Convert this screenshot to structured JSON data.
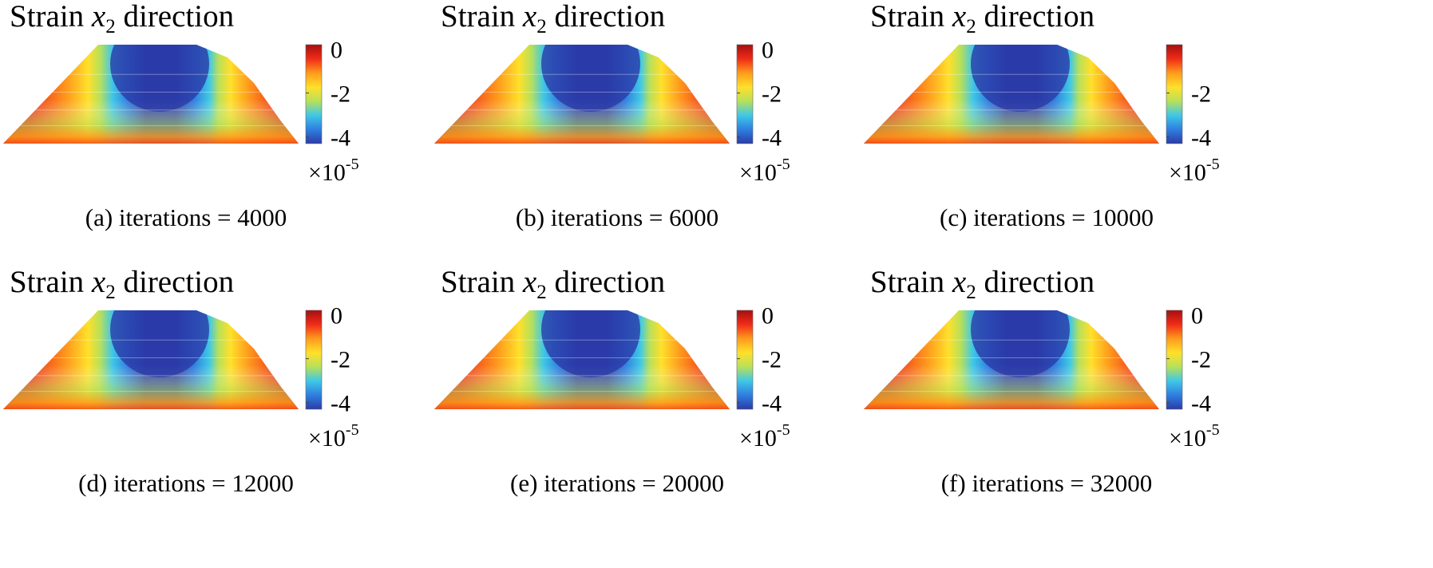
{
  "figure": {
    "colormap": [
      "#2b3ba8",
      "#2f7fe0",
      "#3fc8e6",
      "#b8e05a",
      "#ffe02a",
      "#ff9a1c",
      "#ef2c18",
      "#a80e0e"
    ],
    "colormap_name": "parula/jet",
    "chart_data": [
      {
        "type": "heatmap",
        "title": {
          "main": "Strain",
          "var": "x",
          "sub": "2",
          "rest": "direction"
        },
        "caption": "(a)  iterations = 4000",
        "iterations": 4000,
        "colorbar": {
          "ticks": [
            "0",
            "-2",
            "-4"
          ],
          "range": [
            -4.3,
            0.2
          ],
          "scale_base": "×10",
          "scale_exp": "-5",
          "top_tick_hidden": false
        },
        "field": {
          "min_value": -4.3,
          "max_value": 0,
          "description_unit": "strain"
        }
      },
      {
        "type": "heatmap",
        "title": {
          "main": "Strain",
          "var": "x",
          "sub": "2",
          "rest": "direction"
        },
        "caption": "(b)  iterations = 6000",
        "iterations": 6000,
        "colorbar": {
          "ticks": [
            "0",
            "-2",
            "-4"
          ],
          "range": [
            -4.3,
            0.2
          ],
          "scale_base": "×10",
          "scale_exp": "-5",
          "top_tick_hidden": false
        },
        "field": {
          "min_value": -4.3,
          "max_value": 0,
          "description_unit": "strain"
        }
      },
      {
        "type": "heatmap",
        "title": {
          "main": "Strain",
          "var": "x",
          "sub": "2",
          "rest": "direction"
        },
        "caption": "(c)  iterations = 10000",
        "iterations": 10000,
        "colorbar": {
          "ticks": [
            "",
            "-2",
            "-4"
          ],
          "range": [
            -4.3,
            0.2
          ],
          "scale_base": "×10",
          "scale_exp": "-5",
          "top_tick_hidden": true
        },
        "field": {
          "min_value": -4.3,
          "max_value": 0,
          "description_unit": "strain"
        }
      },
      {
        "type": "heatmap",
        "title": {
          "main": "Strain",
          "var": "x",
          "sub": "2",
          "rest": "direction"
        },
        "caption": "(d)  iterations = 12000",
        "iterations": 12000,
        "colorbar": {
          "ticks": [
            "0",
            "-2",
            "-4"
          ],
          "range": [
            -4.3,
            0.2
          ],
          "scale_base": "×10",
          "scale_exp": "-5",
          "top_tick_hidden": false
        },
        "field": {
          "min_value": -4.3,
          "max_value": 0,
          "description_unit": "strain"
        }
      },
      {
        "type": "heatmap",
        "title": {
          "main": "Strain",
          "var": "x",
          "sub": "2",
          "rest": "direction"
        },
        "caption": "(e)  iterations = 20000",
        "iterations": 20000,
        "colorbar": {
          "ticks": [
            "0",
            "-2",
            "-4"
          ],
          "range": [
            -4.3,
            0.2
          ],
          "scale_base": "×10",
          "scale_exp": "-5",
          "top_tick_hidden": false
        },
        "field": {
          "min_value": -4.3,
          "max_value": 0,
          "description_unit": "strain"
        }
      },
      {
        "type": "heatmap",
        "title": {
          "main": "Strain",
          "var": "x",
          "sub": "2",
          "rest": "direction"
        },
        "caption": "(f)  iterations = 32000",
        "iterations": 32000,
        "colorbar": {
          "ticks": [
            "0",
            "-2",
            "-4"
          ],
          "range": [
            -4.3,
            0.2
          ],
          "scale_base": "×10",
          "scale_exp": "-5",
          "top_tick_hidden": false
        },
        "field": {
          "min_value": -4.3,
          "max_value": 0,
          "description_unit": "strain"
        }
      }
    ]
  }
}
